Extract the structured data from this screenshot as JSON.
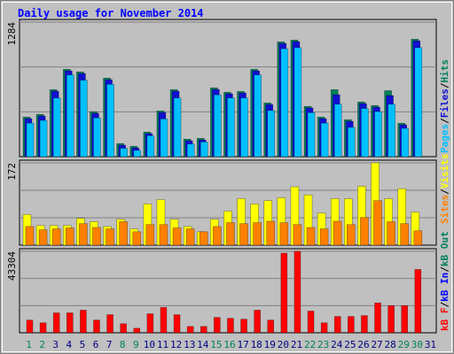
{
  "chart_data": [
    {
      "type": "bar",
      "title": "Daily usage for November 2014",
      "ylim": [
        0,
        1284
      ],
      "yticks": [
        1284
      ],
      "legend_separator": "/",
      "series": [
        {
          "name": "Hits",
          "color": "#00805c",
          "values": [
            378,
            404,
            640,
            834,
            809,
            429,
            750,
            125,
            99,
            235,
            437,
            640,
            167,
            175,
            657,
            615,
            623,
            834,
            513,
            1096,
            1113,
            480,
            378,
            640,
            353,
            522,
            488,
            630,
            319,
            1121,
            0
          ]
        },
        {
          "name": "Files",
          "color": "#1010d0",
          "values": [
            363,
            389,
            625,
            819,
            794,
            414,
            735,
            110,
            84,
            220,
            422,
            625,
            152,
            160,
            642,
            600,
            608,
            819,
            498,
            1081,
            1098,
            465,
            363,
            591,
            338,
            507,
            473,
            583,
            304,
            1106,
            0
          ]
        },
        {
          "name": "Pages",
          "color": "#00c0ff",
          "values": [
            320,
            346,
            560,
            780,
            730,
            370,
            690,
            80,
            60,
            200,
            360,
            560,
            120,
            140,
            590,
            560,
            560,
            780,
            440,
            1030,
            1040,
            420,
            320,
            500,
            280,
            460,
            430,
            500,
            270,
            1040,
            0
          ]
        }
      ]
    },
    {
      "type": "bar",
      "ylim": [
        0,
        172
      ],
      "yticks": [
        172
      ],
      "legend_separator": "/",
      "series": [
        {
          "name": "Visits",
          "color": "#ffff00",
          "values": [
            64,
            41,
            41,
            41,
            56,
            49,
            39,
            54,
            34,
            86,
            95,
            54,
            39,
            28,
            54,
            71,
            97,
            86,
            93,
            99,
            122,
            105,
            67,
            97,
            97,
            123,
            172,
            97,
            118,
            69,
            0
          ]
        },
        {
          "name": "Sites",
          "color": "#ff8000",
          "values": [
            39,
            32,
            34,
            36,
            45,
            37,
            34,
            49,
            28,
            43,
            43,
            36,
            34,
            28,
            39,
            47,
            45,
            47,
            50,
            47,
            43,
            37,
            34,
            50,
            43,
            58,
            93,
            49,
            45,
            30,
            0
          ]
        }
      ]
    },
    {
      "type": "bar",
      "ylim": [
        0,
        43304
      ],
      "yticks": [
        43304
      ],
      "legend_separator": "/",
      "categories": [
        "1",
        "2",
        "3",
        "4",
        "5",
        "6",
        "7",
        "8",
        "9",
        "10",
        "11",
        "12",
        "13",
        "14",
        "15",
        "16",
        "17",
        "18",
        "19",
        "20",
        "21",
        "22",
        "23",
        "24",
        "25",
        "26",
        "27",
        "28",
        "29",
        "30",
        "31"
      ],
      "category_colors": [
        "#00805c",
        "#00805c",
        "#000080",
        "#000080",
        "#000080",
        "#000080",
        "#000080",
        "#00805c",
        "#00805c",
        "#000080",
        "#000080",
        "#000080",
        "#000080",
        "#000080",
        "#00805c",
        "#00805c",
        "#000080",
        "#000080",
        "#000080",
        "#000080",
        "#000080",
        "#00805c",
        "#00805c",
        "#000080",
        "#000080",
        "#000080",
        "#000080",
        "#000080",
        "#00805c",
        "#00805c",
        "#000080"
      ],
      "series": [
        {
          "name": "kB Out",
          "color": "#00805c",
          "values": [
            0,
            0,
            0,
            0,
            0,
            0,
            0,
            0,
            0,
            0,
            0,
            0,
            0,
            0,
            0,
            0,
            0,
            0,
            0,
            0,
            0,
            0,
            0,
            0,
            0,
            0,
            0,
            0,
            0,
            0,
            0
          ]
        },
        {
          "name": "kB In",
          "color": "#0000ff",
          "values": [
            0,
            0,
            0,
            0,
            0,
            0,
            0,
            0,
            0,
            0,
            0,
            0,
            0,
            0,
            0,
            0,
            0,
            0,
            0,
            0,
            0,
            0,
            0,
            0,
            0,
            0,
            0,
            0,
            0,
            0,
            0
          ]
        },
        {
          "name": "kB F",
          "color": "#ff0000",
          "values": [
            6736,
            5293,
            10585,
            10585,
            12029,
            6736,
            9623,
            4811,
            2406,
            10104,
            13472,
            9623,
            3368,
            3368,
            8180,
            7698,
            7217,
            12029,
            6736,
            42341,
            43304,
            11547,
            5293,
            8661,
            8661,
            9142,
            15878,
            14435,
            14435,
            33681,
            0
          ]
        }
      ]
    }
  ]
}
